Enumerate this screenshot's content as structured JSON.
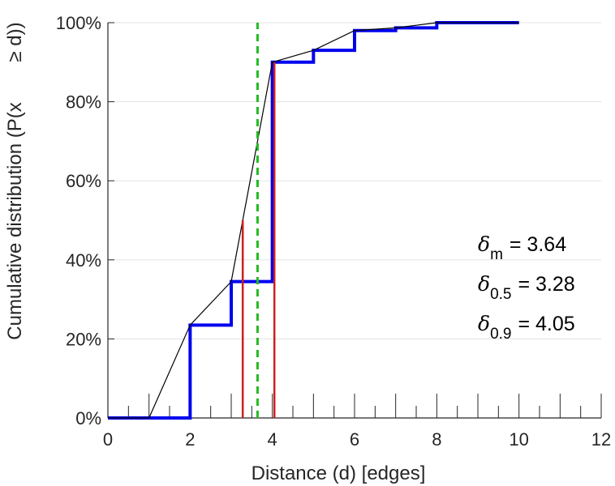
{
  "chart_data": {
    "type": "line",
    "title": "",
    "xlabel": "Distance (d) [edges]",
    "ylabel": "Cumulative distribution (P(x",
    "ylabel_tail": "≥ d))",
    "xlim": [
      0,
      12
    ],
    "ylim": [
      0,
      100
    ],
    "xticks": [
      0,
      2,
      4,
      6,
      8,
      10,
      12
    ],
    "yticks": [
      0,
      20,
      40,
      60,
      80,
      100
    ],
    "ytick_labels": [
      "0%",
      "20%",
      "40%",
      "60%",
      "80%",
      "100%"
    ],
    "grid": "horizontal",
    "colors": {
      "step": "#0000ee",
      "line": "#000000",
      "marker_lines": "#cc1f1f",
      "mean_line": "#22bb22",
      "grid": "#e3e3e3",
      "axis": "#262626"
    },
    "series": [
      {
        "style": "step",
        "x": [
          0,
          1,
          2,
          3,
          4,
          5,
          6,
          7,
          8,
          9,
          10
        ],
        "y": [
          0,
          0,
          23.5,
          34.5,
          90,
          93,
          98,
          98.7,
          100,
          100,
          100
        ]
      },
      {
        "style": "line",
        "x": [
          0,
          1,
          2,
          3,
          4,
          5,
          6,
          7,
          8,
          9,
          10
        ],
        "y": [
          0,
          0,
          23.5,
          34.5,
          90,
          93,
          98,
          98.7,
          100,
          100,
          100
        ]
      }
    ],
    "vlines": [
      {
        "x": 3.28,
        "ymax": 50,
        "style": "solid",
        "color": "#cc1f1f"
      },
      {
        "x": 4.05,
        "ymax": 90,
        "style": "solid",
        "color": "#cc1f1f"
      },
      {
        "x": 3.64,
        "ymax": 100,
        "style": "dashed",
        "color": "#22bb22"
      }
    ],
    "annotations": [
      {
        "symbol": "δ",
        "sub": "m",
        "text": "= 3.64"
      },
      {
        "symbol": "δ",
        "sub": "0.5",
        "text": "= 3.28"
      },
      {
        "symbol": "δ",
        "sub": "0.9",
        "text": "= 4.05"
      }
    ]
  }
}
